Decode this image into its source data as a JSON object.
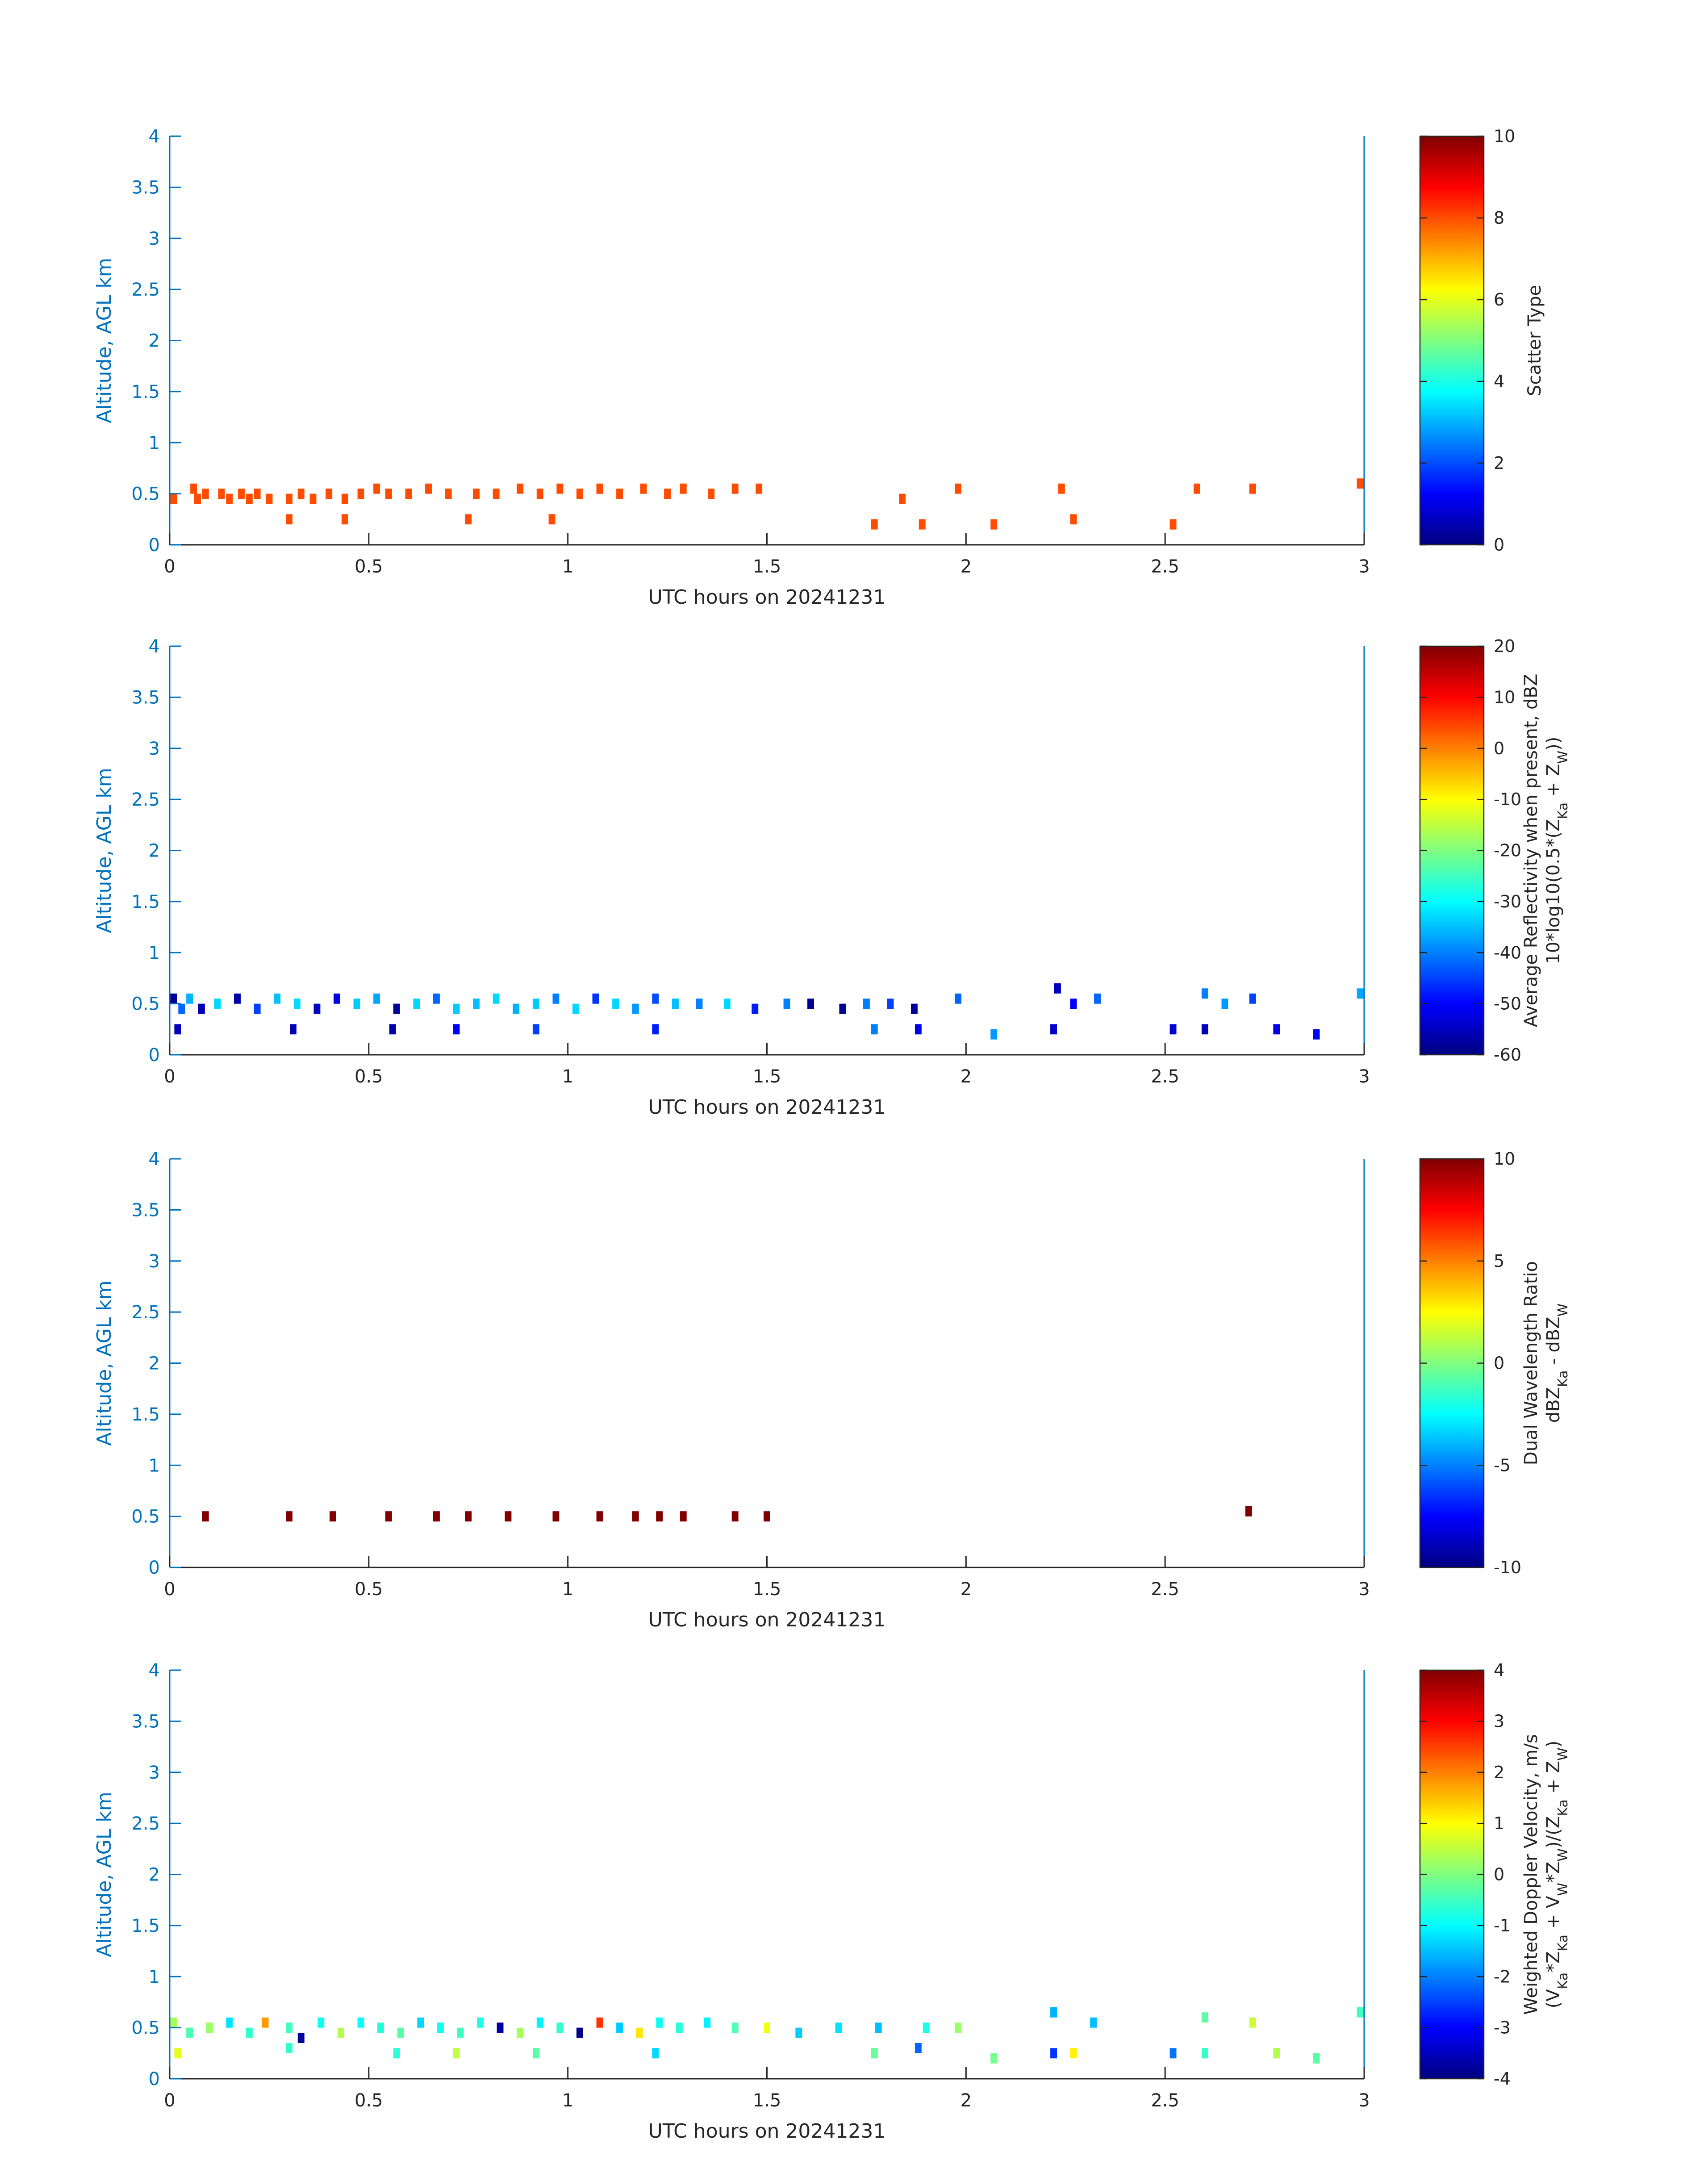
{
  "chart_data": [
    {
      "type": "heatmap",
      "xlabel": "UTC hours on 20241231",
      "ylabel": "Altitude, AGL km",
      "xlim": [
        0,
        3
      ],
      "ylim": [
        0,
        4
      ],
      "xticks": [
        "0",
        "0.5",
        "1",
        "1.5",
        "2",
        "2.5",
        "3"
      ],
      "yticks": [
        "0",
        "0.5",
        "1",
        "1.5",
        "2",
        "2.5",
        "3",
        "3.5",
        "4"
      ],
      "colorbar": {
        "label_lines": [
          "Scatter Type"
        ],
        "range": [
          0,
          10
        ],
        "ticks": [
          "0",
          "2",
          "4",
          "6",
          "8",
          "10"
        ]
      },
      "cell_width_hours": 0.0167,
      "cell_height_km": 0.1,
      "cells": [
        {
          "x": 0.01,
          "y": 0.45,
          "v": 8
        },
        {
          "x": 0.06,
          "y": 0.55,
          "v": 8
        },
        {
          "x": 0.07,
          "y": 0.45,
          "v": 8
        },
        {
          "x": 0.09,
          "y": 0.5,
          "v": 8
        },
        {
          "x": 0.13,
          "y": 0.5,
          "v": 8
        },
        {
          "x": 0.15,
          "y": 0.45,
          "v": 8
        },
        {
          "x": 0.18,
          "y": 0.5,
          "v": 8
        },
        {
          "x": 0.2,
          "y": 0.45,
          "v": 8
        },
        {
          "x": 0.22,
          "y": 0.5,
          "v": 8
        },
        {
          "x": 0.25,
          "y": 0.45,
          "v": 8
        },
        {
          "x": 0.3,
          "y": 0.45,
          "v": 8
        },
        {
          "x": 0.33,
          "y": 0.5,
          "v": 8
        },
        {
          "x": 0.36,
          "y": 0.45,
          "v": 8
        },
        {
          "x": 0.4,
          "y": 0.5,
          "v": 8
        },
        {
          "x": 0.44,
          "y": 0.45,
          "v": 8
        },
        {
          "x": 0.48,
          "y": 0.5,
          "v": 8
        },
        {
          "x": 0.52,
          "y": 0.55,
          "v": 8
        },
        {
          "x": 0.55,
          "y": 0.5,
          "v": 8
        },
        {
          "x": 0.6,
          "y": 0.5,
          "v": 8
        },
        {
          "x": 0.65,
          "y": 0.55,
          "v": 8
        },
        {
          "x": 0.7,
          "y": 0.5,
          "v": 8
        },
        {
          "x": 0.77,
          "y": 0.5,
          "v": 8
        },
        {
          "x": 0.82,
          "y": 0.5,
          "v": 8
        },
        {
          "x": 0.88,
          "y": 0.55,
          "v": 8
        },
        {
          "x": 0.93,
          "y": 0.5,
          "v": 8
        },
        {
          "x": 0.98,
          "y": 0.55,
          "v": 8
        },
        {
          "x": 1.03,
          "y": 0.5,
          "v": 8
        },
        {
          "x": 1.08,
          "y": 0.55,
          "v": 8
        },
        {
          "x": 1.13,
          "y": 0.5,
          "v": 8
        },
        {
          "x": 1.19,
          "y": 0.55,
          "v": 8
        },
        {
          "x": 1.25,
          "y": 0.5,
          "v": 8
        },
        {
          "x": 1.29,
          "y": 0.55,
          "v": 8
        },
        {
          "x": 1.36,
          "y": 0.5,
          "v": 8
        },
        {
          "x": 1.42,
          "y": 0.55,
          "v": 8
        },
        {
          "x": 1.48,
          "y": 0.55,
          "v": 8
        },
        {
          "x": 1.84,
          "y": 0.45,
          "v": 8
        },
        {
          "x": 1.98,
          "y": 0.55,
          "v": 8
        },
        {
          "x": 2.24,
          "y": 0.55,
          "v": 8
        },
        {
          "x": 2.58,
          "y": 0.55,
          "v": 8
        },
        {
          "x": 2.72,
          "y": 0.55,
          "v": 8
        },
        {
          "x": 2.99,
          "y": 0.6,
          "v": 8
        },
        {
          "x": 0.3,
          "y": 0.25,
          "v": 8
        },
        {
          "x": 0.44,
          "y": 0.25,
          "v": 8
        },
        {
          "x": 0.75,
          "y": 0.25,
          "v": 8
        },
        {
          "x": 0.96,
          "y": 0.25,
          "v": 8
        },
        {
          "x": 1.77,
          "y": 0.2,
          "v": 8
        },
        {
          "x": 1.89,
          "y": 0.2,
          "v": 8
        },
        {
          "x": 2.07,
          "y": 0.2,
          "v": 8
        },
        {
          "x": 2.27,
          "y": 0.25,
          "v": 8
        },
        {
          "x": 2.52,
          "y": 0.2,
          "v": 8
        }
      ]
    },
    {
      "type": "heatmap",
      "xlabel": "UTC hours on 20241231",
      "ylabel": "Altitude, AGL km",
      "xlim": [
        0,
        3
      ],
      "ylim": [
        0,
        4
      ],
      "xticks": [
        "0",
        "0.5",
        "1",
        "1.5",
        "2",
        "2.5",
        "3"
      ],
      "yticks": [
        "0",
        "0.5",
        "1",
        "1.5",
        "2",
        "2.5",
        "3",
        "3.5",
        "4"
      ],
      "colorbar": {
        "label_lines": [
          "Average Reflectivity when present, dBZ",
          "10*log10(0.5*(Z_Ka + Z_W))"
        ],
        "range": [
          -60,
          20
        ],
        "ticks": [
          "-60",
          "-50",
          "-40",
          "-30",
          "-20",
          "-10",
          "0",
          "10",
          "20"
        ]
      },
      "cell_width_hours": 0.0167,
      "cell_height_km": 0.1,
      "cells": [
        {
          "x": 0.01,
          "y": 0.55,
          "v": -58
        },
        {
          "x": 0.03,
          "y": 0.45,
          "v": -42
        },
        {
          "x": 0.05,
          "y": 0.55,
          "v": -36
        },
        {
          "x": 0.08,
          "y": 0.45,
          "v": -56
        },
        {
          "x": 0.12,
          "y": 0.5,
          "v": -33
        },
        {
          "x": 0.17,
          "y": 0.55,
          "v": -57
        },
        {
          "x": 0.22,
          "y": 0.45,
          "v": -45
        },
        {
          "x": 0.27,
          "y": 0.55,
          "v": -35
        },
        {
          "x": 0.32,
          "y": 0.5,
          "v": -33
        },
        {
          "x": 0.37,
          "y": 0.45,
          "v": -55
        },
        {
          "x": 0.42,
          "y": 0.55,
          "v": -52
        },
        {
          "x": 0.47,
          "y": 0.5,
          "v": -34
        },
        {
          "x": 0.52,
          "y": 0.55,
          "v": -37
        },
        {
          "x": 0.57,
          "y": 0.45,
          "v": -58
        },
        {
          "x": 0.62,
          "y": 0.5,
          "v": -33
        },
        {
          "x": 0.67,
          "y": 0.55,
          "v": -42
        },
        {
          "x": 0.72,
          "y": 0.45,
          "v": -34
        },
        {
          "x": 0.77,
          "y": 0.5,
          "v": -35
        },
        {
          "x": 0.82,
          "y": 0.55,
          "v": -33
        },
        {
          "x": 0.87,
          "y": 0.45,
          "v": -36
        },
        {
          "x": 0.92,
          "y": 0.5,
          "v": -34
        },
        {
          "x": 0.97,
          "y": 0.55,
          "v": -40
        },
        {
          "x": 1.02,
          "y": 0.45,
          "v": -33
        },
        {
          "x": 1.07,
          "y": 0.55,
          "v": -46
        },
        {
          "x": 1.12,
          "y": 0.5,
          "v": -33
        },
        {
          "x": 1.17,
          "y": 0.45,
          "v": -38
        },
        {
          "x": 1.22,
          "y": 0.55,
          "v": -44
        },
        {
          "x": 1.27,
          "y": 0.5,
          "v": -35
        },
        {
          "x": 1.33,
          "y": 0.5,
          "v": -40
        },
        {
          "x": 1.4,
          "y": 0.5,
          "v": -33
        },
        {
          "x": 1.47,
          "y": 0.45,
          "v": -48
        },
        {
          "x": 1.55,
          "y": 0.5,
          "v": -40
        },
        {
          "x": 1.61,
          "y": 0.5,
          "v": -58
        },
        {
          "x": 1.69,
          "y": 0.45,
          "v": -58
        },
        {
          "x": 1.75,
          "y": 0.5,
          "v": -40
        },
        {
          "x": 1.81,
          "y": 0.5,
          "v": -45
        },
        {
          "x": 1.87,
          "y": 0.45,
          "v": -58
        },
        {
          "x": 1.98,
          "y": 0.55,
          "v": -42
        },
        {
          "x": 2.23,
          "y": 0.65,
          "v": -55
        },
        {
          "x": 2.27,
          "y": 0.5,
          "v": -50
        },
        {
          "x": 2.33,
          "y": 0.55,
          "v": -42
        },
        {
          "x": 2.6,
          "y": 0.6,
          "v": -40
        },
        {
          "x": 2.65,
          "y": 0.5,
          "v": -38
        },
        {
          "x": 2.72,
          "y": 0.55,
          "v": -45
        },
        {
          "x": 2.99,
          "y": 0.6,
          "v": -37
        },
        {
          "x": 0.02,
          "y": 0.25,
          "v": -55
        },
        {
          "x": 0.31,
          "y": 0.25,
          "v": -56
        },
        {
          "x": 0.56,
          "y": 0.25,
          "v": -57
        },
        {
          "x": 0.72,
          "y": 0.25,
          "v": -50
        },
        {
          "x": 0.92,
          "y": 0.25,
          "v": -45
        },
        {
          "x": 1.22,
          "y": 0.25,
          "v": -48
        },
        {
          "x": 1.77,
          "y": 0.25,
          "v": -40
        },
        {
          "x": 1.88,
          "y": 0.25,
          "v": -52
        },
        {
          "x": 2.07,
          "y": 0.2,
          "v": -38
        },
        {
          "x": 2.22,
          "y": 0.25,
          "v": -54
        },
        {
          "x": 2.52,
          "y": 0.25,
          "v": -53
        },
        {
          "x": 2.6,
          "y": 0.25,
          "v": -55
        },
        {
          "x": 2.78,
          "y": 0.25,
          "v": -52
        },
        {
          "x": 2.88,
          "y": 0.2,
          "v": -50
        }
      ]
    },
    {
      "type": "heatmap",
      "xlabel": "UTC hours on 20241231",
      "ylabel": "Altitude, AGL km",
      "xlim": [
        0,
        3
      ],
      "ylim": [
        0,
        4
      ],
      "xticks": [
        "0",
        "0.5",
        "1",
        "1.5",
        "2",
        "2.5",
        "3"
      ],
      "yticks": [
        "0",
        "0.5",
        "1",
        "1.5",
        "2",
        "2.5",
        "3",
        "3.5",
        "4"
      ],
      "colorbar": {
        "label_lines": [
          "Dual Wavelength Ratio",
          "dBZ_Ka - dBZ_W"
        ],
        "range": [
          -10,
          10
        ],
        "ticks": [
          "-10",
          "-5",
          "0",
          "5",
          "10"
        ]
      },
      "cell_width_hours": 0.0167,
      "cell_height_km": 0.1,
      "cells": [
        {
          "x": 0.09,
          "y": 0.5,
          "v": 10
        },
        {
          "x": 0.3,
          "y": 0.5,
          "v": 10
        },
        {
          "x": 0.41,
          "y": 0.5,
          "v": 10
        },
        {
          "x": 0.55,
          "y": 0.5,
          "v": 10
        },
        {
          "x": 0.67,
          "y": 0.5,
          "v": 10
        },
        {
          "x": 0.75,
          "y": 0.5,
          "v": 10
        },
        {
          "x": 0.85,
          "y": 0.5,
          "v": 10
        },
        {
          "x": 0.97,
          "y": 0.5,
          "v": 10
        },
        {
          "x": 1.08,
          "y": 0.5,
          "v": 10
        },
        {
          "x": 1.17,
          "y": 0.5,
          "v": 10
        },
        {
          "x": 1.23,
          "y": 0.5,
          "v": 10
        },
        {
          "x": 1.29,
          "y": 0.5,
          "v": 10
        },
        {
          "x": 1.42,
          "y": 0.5,
          "v": 10
        },
        {
          "x": 1.5,
          "y": 0.5,
          "v": 10
        },
        {
          "x": 2.71,
          "y": 0.55,
          "v": 10
        }
      ]
    },
    {
      "type": "heatmap",
      "xlabel": "UTC hours on 20241231",
      "ylabel": "Altitude, AGL km",
      "xlim": [
        0,
        3
      ],
      "ylim": [
        0,
        4
      ],
      "xticks": [
        "0",
        "0.5",
        "1",
        "1.5",
        "2",
        "2.5",
        "3"
      ],
      "yticks": [
        "0",
        "0.5",
        "1",
        "1.5",
        "2",
        "2.5",
        "3",
        "3.5",
        "4"
      ],
      "colorbar": {
        "label_lines": [
          "Weighted Doppler Velocity, m/s",
          "(V_Ka*Z_Ka + V_W*Z_W)/(Z_Ka + Z_W)"
        ],
        "range": [
          -4,
          4
        ],
        "ticks": [
          "-4",
          "-3",
          "-2",
          "-1",
          "0",
          "1",
          "2",
          "3",
          "4"
        ]
      },
      "cell_width_hours": 0.0167,
      "cell_height_km": 0.1,
      "cells": [
        {
          "x": 0.01,
          "y": 0.55,
          "v": 0.3
        },
        {
          "x": 0.05,
          "y": 0.45,
          "v": -0.4
        },
        {
          "x": 0.1,
          "y": 0.5,
          "v": 0.2
        },
        {
          "x": 0.15,
          "y": 0.55,
          "v": -1.2
        },
        {
          "x": 0.2,
          "y": 0.45,
          "v": -0.6
        },
        {
          "x": 0.24,
          "y": 0.55,
          "v": 1.8
        },
        {
          "x": 0.3,
          "y": 0.5,
          "v": -0.5
        },
        {
          "x": 0.33,
          "y": 0.4,
          "v": -3.8
        },
        {
          "x": 0.38,
          "y": 0.55,
          "v": -0.9
        },
        {
          "x": 0.43,
          "y": 0.45,
          "v": 0.4
        },
        {
          "x": 0.48,
          "y": 0.55,
          "v": -1.0
        },
        {
          "x": 0.53,
          "y": 0.5,
          "v": -0.7
        },
        {
          "x": 0.58,
          "y": 0.45,
          "v": -0.3
        },
        {
          "x": 0.63,
          "y": 0.55,
          "v": -1.3
        },
        {
          "x": 0.68,
          "y": 0.5,
          "v": -0.9
        },
        {
          "x": 0.73,
          "y": 0.45,
          "v": -0.5
        },
        {
          "x": 0.78,
          "y": 0.55,
          "v": -0.8
        },
        {
          "x": 0.83,
          "y": 0.5,
          "v": -3.7
        },
        {
          "x": 0.88,
          "y": 0.45,
          "v": 0.3
        },
        {
          "x": 0.93,
          "y": 0.55,
          "v": -1.1
        },
        {
          "x": 0.98,
          "y": 0.5,
          "v": -0.6
        },
        {
          "x": 1.03,
          "y": 0.45,
          "v": -3.9
        },
        {
          "x": 1.08,
          "y": 0.55,
          "v": 2.6
        },
        {
          "x": 1.13,
          "y": 0.5,
          "v": -1.4
        },
        {
          "x": 1.18,
          "y": 0.45,
          "v": 1.2
        },
        {
          "x": 1.23,
          "y": 0.55,
          "v": -0.9
        },
        {
          "x": 1.28,
          "y": 0.5,
          "v": -0.7
        },
        {
          "x": 1.35,
          "y": 0.55,
          "v": -1.1
        },
        {
          "x": 1.42,
          "y": 0.5,
          "v": -0.4
        },
        {
          "x": 1.5,
          "y": 0.5,
          "v": 0.9
        },
        {
          "x": 1.58,
          "y": 0.45,
          "v": -1.4
        },
        {
          "x": 1.68,
          "y": 0.5,
          "v": -1.2
        },
        {
          "x": 1.78,
          "y": 0.5,
          "v": -1.5
        },
        {
          "x": 1.9,
          "y": 0.5,
          "v": -0.8
        },
        {
          "x": 1.98,
          "y": 0.5,
          "v": 0.2
        },
        {
          "x": 2.22,
          "y": 0.65,
          "v": -1.6
        },
        {
          "x": 2.32,
          "y": 0.55,
          "v": -1.5
        },
        {
          "x": 2.6,
          "y": 0.6,
          "v": -0.3
        },
        {
          "x": 2.72,
          "y": 0.55,
          "v": 0.6
        },
        {
          "x": 2.99,
          "y": 0.65,
          "v": -0.5
        },
        {
          "x": 0.02,
          "y": 0.25,
          "v": 0.8
        },
        {
          "x": 0.3,
          "y": 0.3,
          "v": -0.6
        },
        {
          "x": 0.57,
          "y": 0.25,
          "v": -0.7
        },
        {
          "x": 0.72,
          "y": 0.25,
          "v": 0.5
        },
        {
          "x": 0.92,
          "y": 0.25,
          "v": -0.3
        },
        {
          "x": 1.22,
          "y": 0.25,
          "v": -1.3
        },
        {
          "x": 1.77,
          "y": 0.25,
          "v": -0.2
        },
        {
          "x": 1.88,
          "y": 0.3,
          "v": -2.2
        },
        {
          "x": 2.07,
          "y": 0.2,
          "v": -0.1
        },
        {
          "x": 2.22,
          "y": 0.25,
          "v": -2.6
        },
        {
          "x": 2.27,
          "y": 0.25,
          "v": 1.1
        },
        {
          "x": 2.52,
          "y": 0.25,
          "v": -2.1
        },
        {
          "x": 2.6,
          "y": 0.25,
          "v": -0.6
        },
        {
          "x": 2.78,
          "y": 0.25,
          "v": 0.4
        },
        {
          "x": 2.88,
          "y": 0.2,
          "v": -0.3
        }
      ]
    }
  ]
}
